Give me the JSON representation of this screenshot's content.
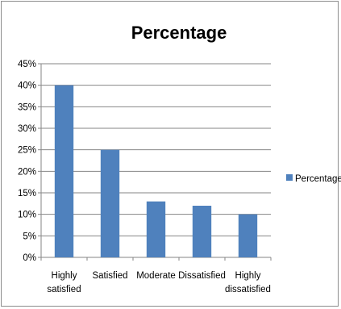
{
  "chart_data": {
    "type": "bar",
    "title": "Percentage",
    "categories": [
      [
        "Highly",
        "satisfied"
      ],
      [
        "Satisfied"
      ],
      [
        "Moderate"
      ],
      [
        "Dissatisfied"
      ],
      [
        "Highly",
        "dissatisfied"
      ]
    ],
    "series": [
      {
        "name": "Percentage",
        "values": [
          40,
          25,
          13,
          12,
          10
        ]
      }
    ],
    "ylim": [
      0,
      45
    ],
    "yticks": [
      "0%",
      "5%",
      "10%",
      "15%",
      "20%",
      "25%",
      "30%",
      "35%",
      "40%",
      "45%"
    ],
    "grid": true,
    "legend_position": "right",
    "bar_color": "#4f81bd",
    "grid_color": "#868686"
  }
}
